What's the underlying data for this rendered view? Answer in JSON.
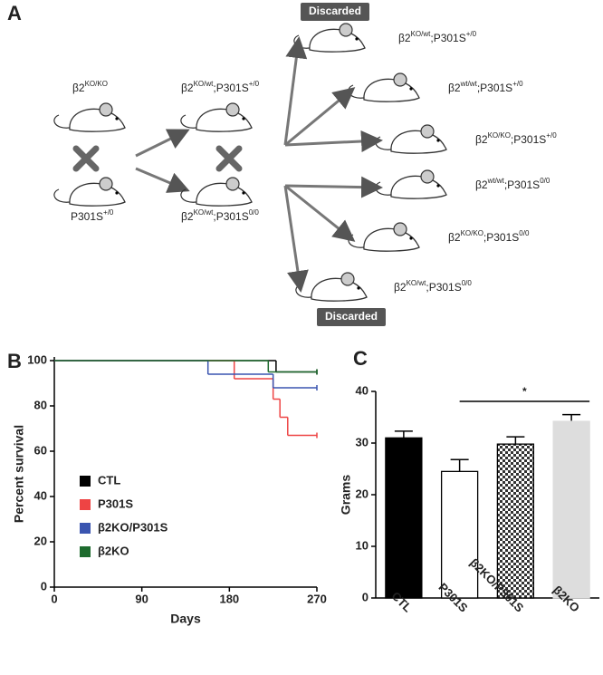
{
  "panel_labels": [
    "A",
    "B",
    "C"
  ],
  "diagram": {
    "discard_label": "Discarded",
    "parents": [
      [
        {
          "base": "β2",
          "sup": "KO/KO"
        }
      ],
      [
        {
          "base": "P301S",
          "sup": "+/0"
        }
      ]
    ],
    "f1": [
      [
        {
          "base": "β2",
          "sup": "KO/wt"
        },
        {
          "base": ";P301S",
          "sup": "+/0"
        }
      ],
      [
        {
          "base": "β2",
          "sup": "KO/wt"
        },
        {
          "base": ";P301S",
          "sup": "0/0"
        }
      ]
    ],
    "f2": [
      [
        {
          "base": "β2",
          "sup": "KO/wt"
        },
        {
          "base": ";P301S",
          "sup": "+/0"
        }
      ],
      [
        {
          "base": "β2",
          "sup": "wt/wt"
        },
        {
          "base": ";P301S",
          "sup": "+/0"
        }
      ],
      [
        {
          "base": "β2",
          "sup": "KO/KO"
        },
        {
          "base": ";P301S",
          "sup": "+/0"
        }
      ],
      [
        {
          "base": "β2",
          "sup": "wt/wt"
        },
        {
          "base": ";P301S",
          "sup": "0/0"
        }
      ],
      [
        {
          "base": "β2",
          "sup": "KO/KO"
        },
        {
          "base": ";P301S",
          "sup": "0/0"
        }
      ],
      [
        {
          "base": "β2",
          "sup": "KO/wt"
        },
        {
          "base": ";P301S",
          "sup": "0/0"
        }
      ]
    ]
  },
  "chart_data": [
    {
      "type": "step",
      "xlabel": "Days",
      "ylabel": "Percent survival",
      "xlim": [
        0,
        270
      ],
      "xticks": [
        0,
        90,
        180,
        270
      ],
      "ylim": [
        0,
        100
      ],
      "yticks": [
        0,
        20,
        40,
        60,
        80,
        100
      ],
      "series": [
        {
          "name": "CTL",
          "color": "#000000",
          "x": [
            0,
            228,
            270
          ],
          "values": [
            100,
            95,
            95
          ]
        },
        {
          "name": "P301S",
          "color": "#ee4444",
          "x": [
            0,
            185,
            225,
            232,
            240,
            270
          ],
          "values": [
            100,
            92,
            83,
            75,
            67,
            67
          ]
        },
        {
          "name": "β2KO/P301S",
          "color": "#3a55b0",
          "x": [
            0,
            158,
            225,
            270
          ],
          "values": [
            100,
            94,
            88,
            88
          ]
        },
        {
          "name": "β2KO",
          "color": "#1e6b2e",
          "x": [
            0,
            220,
            270
          ],
          "values": [
            100,
            95,
            95
          ]
        }
      ]
    },
    {
      "type": "bar",
      "ylabel": "Grams",
      "categories": [
        "CTL",
        "P301S",
        "β2KO/P301S",
        "β2KO"
      ],
      "values": [
        31,
        24.5,
        29.8,
        34.2
      ],
      "errors": [
        1.3,
        2.3,
        1.4,
        1.3
      ],
      "fills": [
        "#000000",
        "#ffffff",
        "checker",
        "#dddddd"
      ],
      "ylim": [
        0,
        40
      ],
      "yticks": [
        0,
        10,
        20,
        30,
        40
      ],
      "significance": {
        "label": "*",
        "between": [
          1,
          3
        ]
      }
    }
  ]
}
